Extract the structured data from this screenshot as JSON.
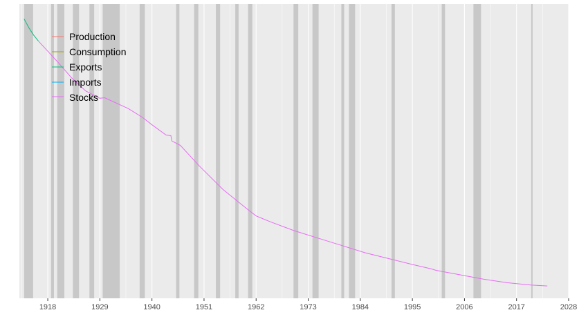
{
  "chart_data": {
    "type": "line",
    "title": "",
    "xlabel": "",
    "ylabel": "",
    "xlim": [
      1912,
      2028
    ],
    "ylim": [
      0,
      100
    ],
    "x_ticks": [
      1918,
      1929,
      1940,
      1951,
      1962,
      1973,
      1984,
      1995,
      2006,
      2017,
      2028
    ],
    "grid": true,
    "legend_position": "top-left",
    "colors": {
      "panel": "#ebebeb",
      "grid": "#ffffff",
      "shade": "#c8c8c8"
    },
    "shaded_periods": [
      [
        1913.0,
        1914.9
      ],
      [
        1918.7,
        1919.3
      ],
      [
        1920.0,
        1921.5
      ],
      [
        1923.3,
        1924.6
      ],
      [
        1926.8,
        1927.8
      ],
      [
        1929.6,
        1933.2
      ],
      [
        1937.4,
        1938.5
      ],
      [
        1945.1,
        1945.8
      ],
      [
        1948.9,
        1949.8
      ],
      [
        1953.5,
        1954.4
      ],
      [
        1957.6,
        1958.3
      ],
      [
        1960.3,
        1961.2
      ],
      [
        1969.9,
        1970.9
      ],
      [
        1973.9,
        1975.2
      ],
      [
        1980.0,
        1980.6
      ],
      [
        1981.6,
        1982.9
      ],
      [
        1990.6,
        1991.3
      ],
      [
        2001.2,
        2001.9
      ],
      [
        2007.9,
        2009.5
      ],
      [
        2020.1,
        2020.4
      ]
    ],
    "series": [
      {
        "name": "Production",
        "color": "#F8766D",
        "x": [],
        "y": []
      },
      {
        "name": "Consumption",
        "color": "#A3A500",
        "x": [],
        "y": []
      },
      {
        "name": "Exports",
        "color": "#00BF7D",
        "x": [
          1913.0,
          1914.0,
          1915.0,
          1916.0
        ],
        "y": [
          95.0,
          92.0,
          89.5,
          87.5
        ]
      },
      {
        "name": "Imports",
        "color": "#00B0F6",
        "x": [],
        "y": []
      },
      {
        "name": "Stocks",
        "color": "#E76BF3",
        "x": [
          1916.0,
          1918.0,
          1920.0,
          1923.0,
          1926.0,
          1929.0,
          1930.0,
          1935.0,
          1938.0,
          1940.0,
          1943.0,
          1944.0,
          1944.2,
          1946.0,
          1950.0,
          1955.0,
          1960.0,
          1962.0,
          1965.0,
          1970.0,
          1975.0,
          1980.0,
          1985.0,
          1990.0,
          1995.0,
          1999.0,
          2000.0,
          2005.0,
          2010.0,
          2015.0,
          2020.0,
          2023.5
        ],
        "y": [
          87.5,
          84.0,
          80.5,
          75.0,
          70.5,
          68.0,
          68.2,
          64.5,
          61.5,
          59.0,
          55.5,
          55.3,
          53.5,
          52.0,
          45.0,
          37.0,
          30.5,
          28.0,
          26.0,
          23.0,
          20.5,
          18.0,
          15.5,
          13.5,
          11.5,
          10.0,
          9.5,
          8.0,
          6.5,
          5.3,
          4.5,
          4.2
        ]
      }
    ]
  }
}
